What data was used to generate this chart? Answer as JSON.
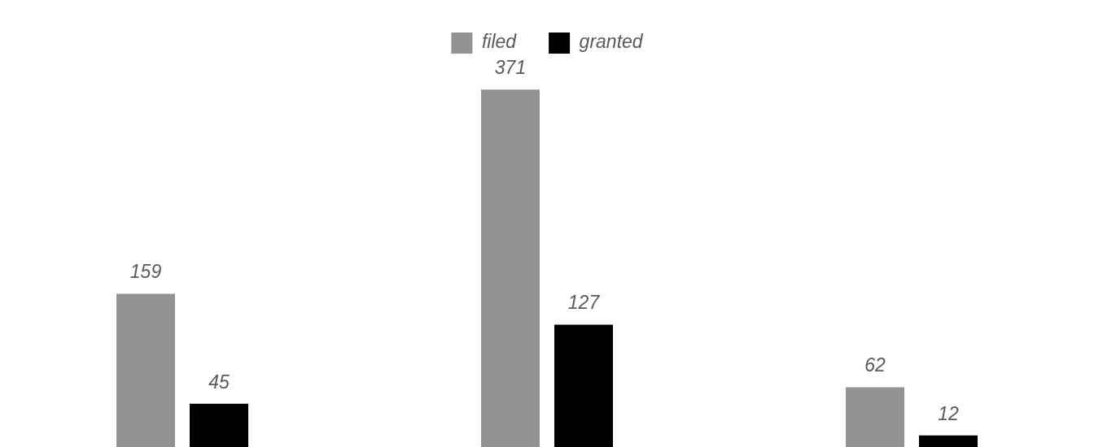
{
  "chart_data": {
    "type": "bar",
    "categories": [
      null,
      null,
      null
    ],
    "series": [
      {
        "name": "filed",
        "color": "#939393",
        "values": [
          159,
          371,
          62
        ]
      },
      {
        "name": "granted",
        "color": "#000000",
        "values": [
          45,
          127,
          12
        ]
      }
    ],
    "data_labels": true,
    "legend": "top"
  }
}
